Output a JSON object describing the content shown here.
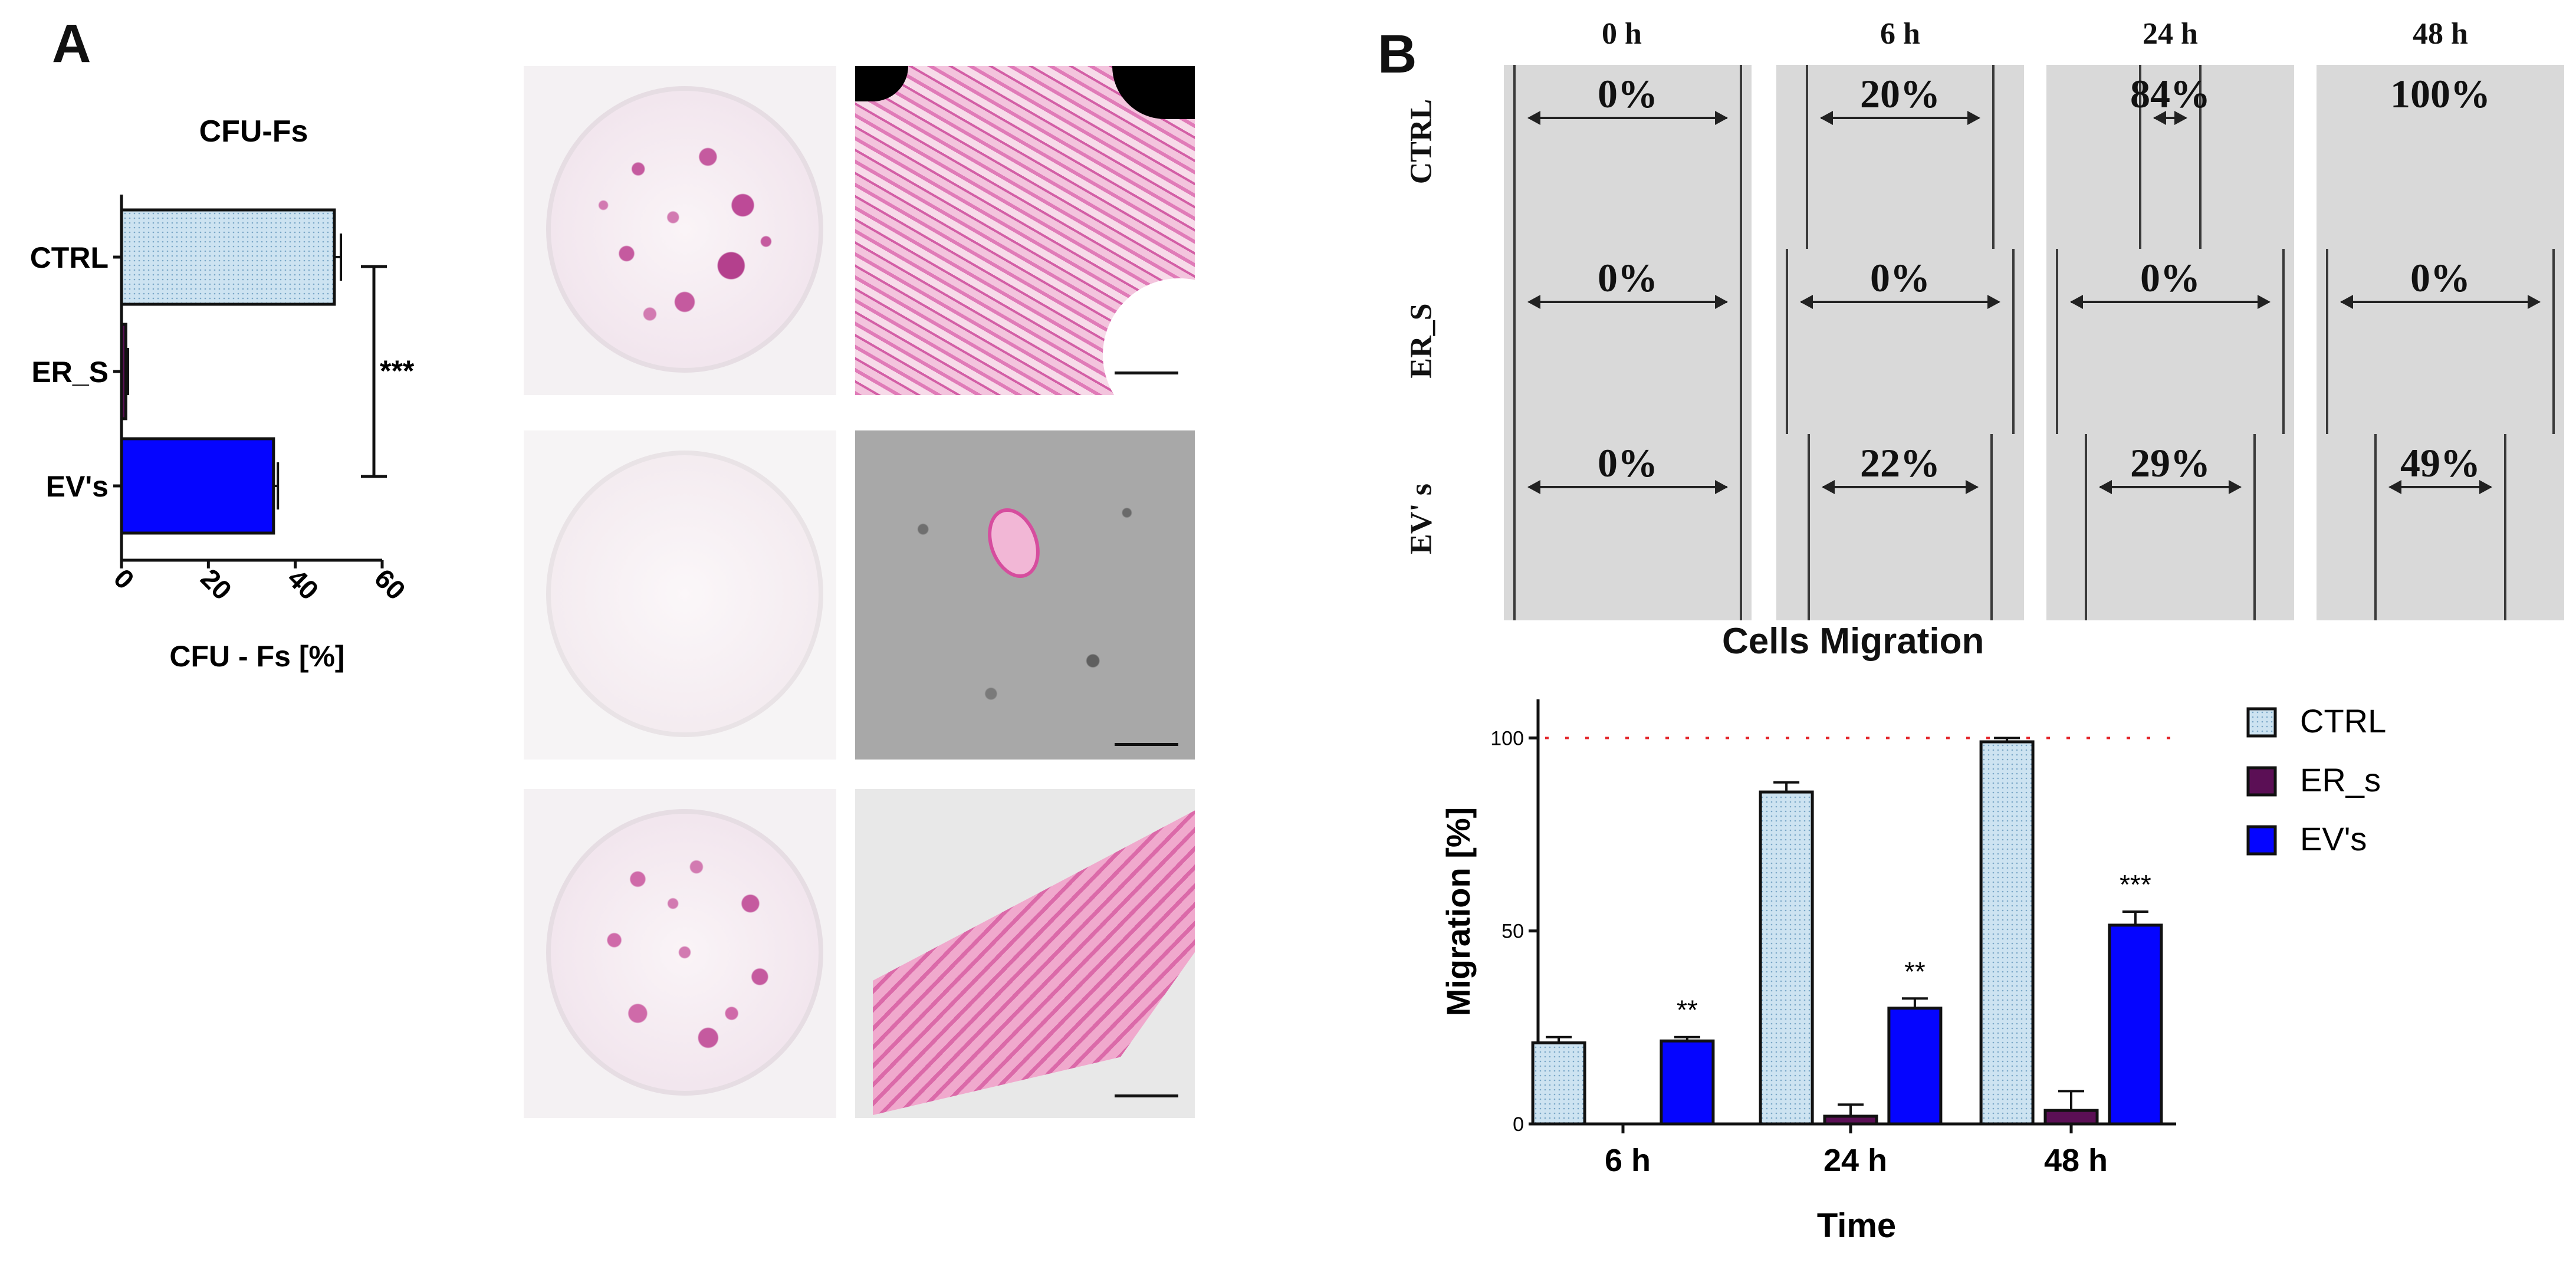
{
  "panel_a": {
    "letter": "A",
    "chart_title": "CFU-Fs",
    "x_axis_label": "CFU - Fs [%]",
    "significance": "***"
  },
  "panel_b": {
    "letter": "B",
    "time_headers": [
      "0 h",
      "6 h",
      "24 h",
      "48 h"
    ],
    "row_labels": [
      "CTRL",
      "ER_S",
      "EV' s"
    ],
    "wound_closure": [
      [
        "0%",
        "20%",
        "84%",
        "100%"
      ],
      [
        "0%",
        "0%",
        "0%",
        "0%"
      ],
      [
        "0%",
        "22%",
        "29%",
        "49%"
      ]
    ],
    "chart_title": "Cells Migration",
    "y_axis_label": "Migration [%]",
    "x_axis_label": "Time",
    "significance": [
      "**",
      "**",
      "***"
    ]
  },
  "colors": {
    "ctrl": "#cde3f1",
    "er": "#5b0f55",
    "ev": "#0505ff",
    "reference_line": "#e3262b",
    "stain": "#cc4f9a"
  },
  "chart_data": [
    {
      "type": "bar",
      "orientation": "horizontal",
      "title": "CFU-Fs",
      "xlabel": "CFU - Fs [%]",
      "categories": [
        "CTRL",
        "ER_S",
        "EV's"
      ],
      "values": [
        49,
        1,
        35
      ],
      "errors": [
        1.5,
        0.5,
        1
      ],
      "xlim": [
        0,
        60
      ],
      "ticks": [
        0,
        20,
        40,
        60
      ],
      "significance": [
        {
          "between": [
            "CTRL",
            "EV's"
          ],
          "label": "***"
        }
      ]
    },
    {
      "type": "bar",
      "title": "Cells Migration",
      "xlabel": "Time",
      "ylabel": "Migration [%]",
      "categories": [
        "6 h",
        "24 h",
        "48 h"
      ],
      "series": [
        {
          "name": "CTRL",
          "values": [
            21,
            86,
            99
          ],
          "errors": [
            1.5,
            2.5,
            1
          ]
        },
        {
          "name": "ER_s",
          "values": [
            0,
            2,
            3.5
          ],
          "errors": [
            0,
            3,
            5
          ]
        },
        {
          "name": "EV's",
          "values": [
            21.5,
            30,
            51.5
          ],
          "errors": [
            1,
            2.5,
            3.5
          ]
        }
      ],
      "ylim": [
        0,
        110
      ],
      "yticks": [
        0,
        50,
        100
      ],
      "reference_line": 100,
      "significance": [
        "**",
        "**",
        "***"
      ],
      "legend": "right"
    }
  ]
}
